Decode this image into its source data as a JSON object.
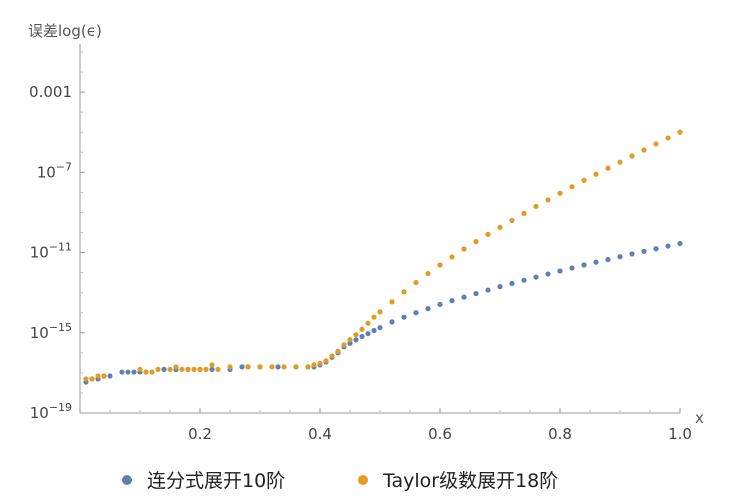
{
  "chart_data": {
    "type": "scatter",
    "title": "",
    "ylabel": "误差log(ϵ)",
    "xlabel": "x",
    "xlim": [
      0.0,
      1.0
    ],
    "ylim": [
      1e-19,
      0.1
    ],
    "y_scale": "log",
    "grid": false,
    "legend_position": "bottom",
    "x_ticks": [
      {
        "value": 0.2,
        "label": "0.2"
      },
      {
        "value": 0.4,
        "label": "0.4"
      },
      {
        "value": 0.6,
        "label": "0.6"
      },
      {
        "value": 0.8,
        "label": "0.8"
      },
      {
        "value": 1.0,
        "label": "1.0"
      }
    ],
    "y_ticks": [
      {
        "value": 1e-19,
        "base": "10",
        "exp": "−19"
      },
      {
        "value": 1e-15,
        "base": "10",
        "exp": "−15"
      },
      {
        "value": 1e-11,
        "base": "10",
        "exp": "−11"
      },
      {
        "value": 1e-07,
        "base": "10",
        "exp": "−7"
      },
      {
        "value": 0.001,
        "base": "0.001",
        "exp": ""
      }
    ],
    "series": [
      {
        "name": "连分式展开10阶",
        "color": "#5e81b5",
        "points": [
          [
            0.01,
            3.5e-18
          ],
          [
            0.02,
            5e-18
          ],
          [
            0.03,
            5e-18
          ],
          [
            0.04,
            7e-18
          ],
          [
            0.05,
            7e-18
          ],
          [
            0.07,
            1.1e-17
          ],
          [
            0.08,
            1.1e-17
          ],
          [
            0.09,
            1.1e-17
          ],
          [
            0.1,
            1.1e-17
          ],
          [
            0.11,
            1.1e-17
          ],
          [
            0.12,
            1.1e-17
          ],
          [
            0.14,
            1.5e-17
          ],
          [
            0.16,
            1.5e-17
          ],
          [
            0.18,
            1.5e-17
          ],
          [
            0.2,
            1.5e-17
          ],
          [
            0.22,
            1.5e-17
          ],
          [
            0.25,
            1.5e-17
          ],
          [
            0.27,
            2e-17
          ],
          [
            0.28,
            2e-17
          ],
          [
            0.3,
            2e-17
          ],
          [
            0.33,
            2e-17
          ],
          [
            0.36,
            2e-17
          ],
          [
            0.38,
            2e-17
          ],
          [
            0.39,
            2e-17
          ],
          [
            0.4,
            2.5e-17
          ],
          [
            0.41,
            3.5e-17
          ],
          [
            0.42,
            6e-17
          ],
          [
            0.43,
            1e-16
          ],
          [
            0.44,
            2e-16
          ],
          [
            0.45,
            3e-16
          ],
          [
            0.46,
            4.5e-16
          ],
          [
            0.47,
            6.5e-16
          ],
          [
            0.48,
            9e-16
          ],
          [
            0.49,
            1.3e-15
          ],
          [
            0.5,
            1.8e-15
          ],
          [
            0.52,
            3.5e-15
          ],
          [
            0.54,
            6e-15
          ],
          [
            0.56,
            1e-14
          ],
          [
            0.58,
            1.6e-14
          ],
          [
            0.6,
            2.6e-14
          ],
          [
            0.62,
            4e-14
          ],
          [
            0.64,
            6e-14
          ],
          [
            0.66,
            9e-14
          ],
          [
            0.68,
            1.35e-13
          ],
          [
            0.7,
            2e-13
          ],
          [
            0.72,
            2.9e-13
          ],
          [
            0.74,
            4.2e-13
          ],
          [
            0.76,
            6e-13
          ],
          [
            0.78,
            8.5e-13
          ],
          [
            0.8,
            1.2e-12
          ],
          [
            0.82,
            1.7e-12
          ],
          [
            0.84,
            2.4e-12
          ],
          [
            0.86,
            3.3e-12
          ],
          [
            0.88,
            4.5e-12
          ],
          [
            0.9,
            6.2e-12
          ],
          [
            0.92,
            8.5e-12
          ],
          [
            0.94,
            1.15e-11
          ],
          [
            0.96,
            1.55e-11
          ],
          [
            0.98,
            2.1e-11
          ],
          [
            1.0,
            2.8e-11
          ]
        ]
      },
      {
        "name": "Taylor级数展开18阶",
        "color": "#e19c24",
        "points": [
          [
            0.01,
            5e-18
          ],
          [
            0.02,
            5e-18
          ],
          [
            0.03,
            7e-18
          ],
          [
            0.04,
            7e-18
          ],
          [
            0.1,
            1.5e-17
          ],
          [
            0.11,
            1.1e-17
          ],
          [
            0.12,
            1.1e-17
          ],
          [
            0.13,
            1.5e-17
          ],
          [
            0.15,
            1.5e-17
          ],
          [
            0.16,
            2e-17
          ],
          [
            0.17,
            1.5e-17
          ],
          [
            0.18,
            1.5e-17
          ],
          [
            0.19,
            1.5e-17
          ],
          [
            0.2,
            1.5e-17
          ],
          [
            0.21,
            1.5e-17
          ],
          [
            0.22,
            2.5e-17
          ],
          [
            0.23,
            1.5e-17
          ],
          [
            0.25,
            2e-17
          ],
          [
            0.28,
            2e-17
          ],
          [
            0.3,
            2e-17
          ],
          [
            0.32,
            2e-17
          ],
          [
            0.34,
            2e-17
          ],
          [
            0.36,
            2e-17
          ],
          [
            0.38,
            2e-17
          ],
          [
            0.39,
            2.5e-17
          ],
          [
            0.4,
            3e-17
          ],
          [
            0.41,
            4e-17
          ],
          [
            0.42,
            7e-17
          ],
          [
            0.43,
            1.2e-16
          ],
          [
            0.44,
            2.5e-16
          ],
          [
            0.45,
            4.5e-16
          ],
          [
            0.46,
            8e-16
          ],
          [
            0.47,
            1.5e-15
          ],
          [
            0.48,
            3e-15
          ],
          [
            0.49,
            6e-15
          ],
          [
            0.5,
            1.1e-14
          ],
          [
            0.52,
            3.5e-14
          ],
          [
            0.54,
            1.1e-13
          ],
          [
            0.56,
            3.2e-13
          ],
          [
            0.58,
            9e-13
          ],
          [
            0.6,
            2.4e-12
          ],
          [
            0.62,
            6e-12
          ],
          [
            0.64,
            1.5e-11
          ],
          [
            0.66,
            3.5e-11
          ],
          [
            0.68,
            8e-11
          ],
          [
            0.7,
            1.8e-10
          ],
          [
            0.72,
            4e-10
          ],
          [
            0.74,
            9e-10
          ],
          [
            0.76,
            2e-09
          ],
          [
            0.78,
            4.2e-09
          ],
          [
            0.8,
            9e-09
          ],
          [
            0.82,
            1.9e-08
          ],
          [
            0.84,
            4e-08
          ],
          [
            0.86,
            8e-08
          ],
          [
            0.88,
            1.6e-07
          ],
          [
            0.9,
            3.2e-07
          ],
          [
            0.92,
            6.5e-07
          ],
          [
            0.94,
            1.3e-06
          ],
          [
            0.96,
            2.6e-06
          ],
          [
            0.98,
            5.2e-06
          ],
          [
            1.0,
            1e-05
          ]
        ]
      }
    ]
  }
}
